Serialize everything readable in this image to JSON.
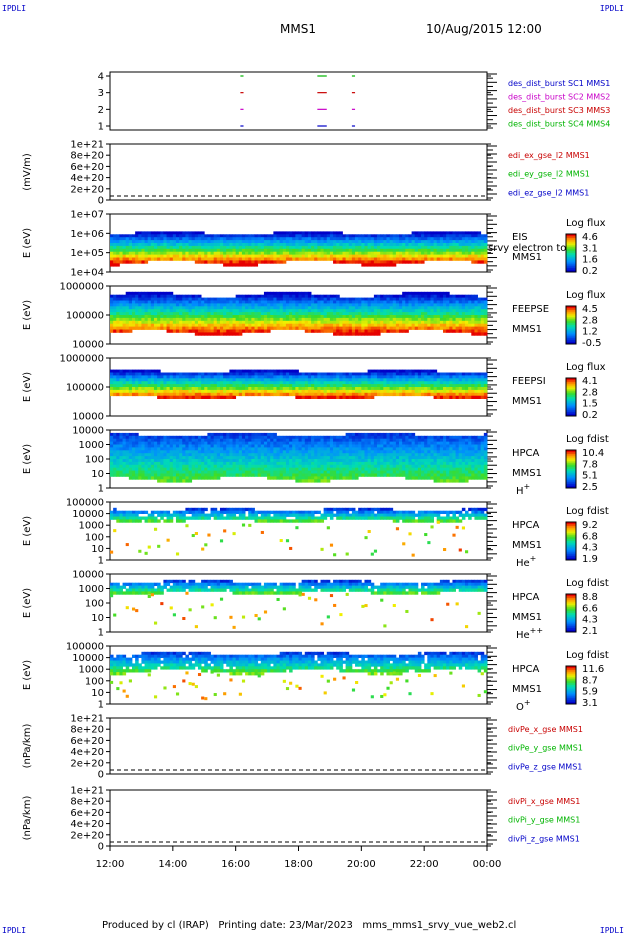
{
  "header": {
    "corner_label": "IPDLI",
    "mission": "MMS1",
    "date_time": "10/Aug/2015 12:00"
  },
  "footer": {
    "produced_by": "Produced by cl (IRAP)",
    "printing_date": "Printing date: 23/Mar/2023",
    "script_name": "mms_mms1_srvy_vue_web2.cl"
  },
  "chart_data": [
    {
      "type": "scatter",
      "panel": "burst",
      "yticks": [
        "4",
        "3",
        "2",
        "1"
      ],
      "ylim": [
        0.5,
        4.5
      ],
      "legend": [
        {
          "label": "des_dist_burst SC1 MMS1",
          "color": "#0000c8"
        },
        {
          "label": "des_dist_burst SC2 MMS2",
          "color": "#c800c8"
        },
        {
          "label": "des_dist_burst SC3 MMS3",
          "color": "#c80000"
        },
        {
          "label": "des_dist_burst SC4 MMS4",
          "color": "#00b400"
        }
      ],
      "intervals_hours": [
        [
          4.15,
          4.25
        ],
        [
          6.6,
          6.9
        ],
        [
          7.7,
          7.8
        ]
      ]
    },
    {
      "type": "line",
      "panel": "edi",
      "ylabel": "(mV/m)",
      "yticks": [
        "1e+21",
        "8e+20",
        "6e+20",
        "4e+20",
        "2e+20",
        "0"
      ],
      "legend": [
        {
          "label": "edi_ex_gse_l2 MMS1",
          "color": "#c80000"
        },
        {
          "label": "edi_ey_gse_l2 MMS1",
          "color": "#00b400"
        },
        {
          "label": "edi_ez_gse_l2 MMS1",
          "color": "#0000c8"
        }
      ]
    },
    {
      "type": "heatmap",
      "panel": "eis",
      "ylabel": "E (eV)",
      "yticks": [
        "1e+07",
        "1e+06",
        "1e+05",
        "1e+04"
      ],
      "instrument": [
        "EIS",
        "MMS1"
      ],
      "overlay_text": "srvy electron tof",
      "colorbar_title": "Log flux",
      "colorbar_ticks": [
        "4.6",
        "3.1",
        "1.6",
        "0.2"
      ]
    },
    {
      "type": "heatmap",
      "panel": "feepse",
      "ylabel": "E (eV)",
      "yticks": [
        "1000000",
        "100000",
        "10000"
      ],
      "instrument": [
        "FEEPSE",
        "MMS1"
      ],
      "colorbar_title": "Log flux",
      "colorbar_ticks": [
        "4.5",
        "2.8",
        "1.2",
        "-0.5"
      ]
    },
    {
      "type": "heatmap",
      "panel": "feepsi",
      "ylabel": "E (eV)",
      "yticks": [
        "1000000",
        "100000",
        "10000"
      ],
      "instrument": [
        "FEEPSI",
        "MMS1"
      ],
      "colorbar_title": "Log flux",
      "colorbar_ticks": [
        "4.1",
        "2.8",
        "1.5",
        "0.2"
      ]
    },
    {
      "type": "heatmap",
      "panel": "hpca-h",
      "ylabel": "E (eV)",
      "yticks": [
        "10000",
        "1000",
        "100",
        "10",
        "1"
      ],
      "instrument": [
        "HPCA",
        "MMS1",
        "H+"
      ],
      "colorbar_title": "Log fdist",
      "colorbar_ticks": [
        "10.4",
        "7.8",
        "5.1",
        "2.5"
      ]
    },
    {
      "type": "heatmap",
      "panel": "hpca-he",
      "ylabel": "E (eV)",
      "yticks": [
        "100000",
        "10000",
        "1000",
        "100",
        "10",
        "1"
      ],
      "instrument": [
        "HPCA",
        "MMS1",
        "He+"
      ],
      "colorbar_title": "Log fdist",
      "colorbar_ticks": [
        "9.2",
        "6.8",
        "4.3",
        "1.9"
      ]
    },
    {
      "type": "heatmap",
      "panel": "hpca-hepp",
      "ylabel": "E (eV)",
      "yticks": [
        "10000",
        "1000",
        "100",
        "10",
        "1"
      ],
      "instrument": [
        "HPCA",
        "MMS1",
        "He++"
      ],
      "colorbar_title": "Log fdist",
      "colorbar_ticks": [
        "8.8",
        "6.6",
        "4.3",
        "2.1"
      ]
    },
    {
      "type": "heatmap",
      "panel": "hpca-o",
      "ylabel": "E (eV)",
      "yticks": [
        "100000",
        "10000",
        "1000",
        "100",
        "10",
        "1"
      ],
      "instrument": [
        "HPCA",
        "MMS1",
        "O+"
      ],
      "colorbar_title": "Log fdist",
      "colorbar_ticks": [
        "11.6",
        "8.7",
        "5.9",
        "3.1"
      ]
    },
    {
      "type": "line",
      "panel": "divpe",
      "ylabel": "(nPa/km)",
      "yticks": [
        "1e+21",
        "8e+20",
        "6e+20",
        "4e+20",
        "2e+20",
        "0"
      ],
      "legend": [
        {
          "label": "divPe_x_gse MMS1",
          "color": "#c80000"
        },
        {
          "label": "divPe_y_gse MMS1",
          "color": "#00b400"
        },
        {
          "label": "divPe_z_gse MMS1",
          "color": "#0000c8"
        }
      ]
    },
    {
      "type": "line",
      "panel": "divpi",
      "ylabel": "(nPa/km)",
      "yticks": [
        "1e+21",
        "8e+20",
        "6e+20",
        "4e+20",
        "2e+20",
        "0"
      ],
      "legend": [
        {
          "label": "divPi_x_gse MMS1",
          "color": "#c80000"
        },
        {
          "label": "divPi_y_gse MMS1",
          "color": "#00b400"
        },
        {
          "label": "divPi_z_gse MMS1",
          "color": "#0000c8"
        }
      ]
    }
  ],
  "xaxis": {
    "ticks": [
      "12:00",
      "14:00",
      "16:00",
      "18:00",
      "20:00",
      "22:00",
      "00:00"
    ],
    "range_hours": [
      0,
      12
    ]
  }
}
